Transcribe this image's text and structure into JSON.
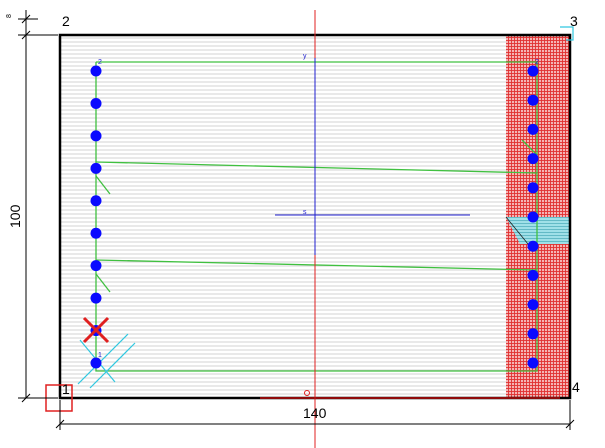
{
  "dimensions": {
    "width_label": "140",
    "height_label": "100",
    "top_label": "8"
  },
  "corners": {
    "c1": "1",
    "c2": "2",
    "c3": "3",
    "c4": "4"
  },
  "axes": {
    "vertical_label": "y",
    "center_label": "s"
  },
  "rebar": {
    "left_top_label": "2",
    "right_top_label": "2",
    "left_low_label": "1",
    "left_count": 10,
    "right_count": 11
  },
  "colors": {
    "section_outline": "#000000",
    "hatch": "#c8c8c8",
    "steel_zone": "#e8323c",
    "rebar": "#0a0aff",
    "stirrup": "#40c040",
    "axis_red": "#e02020",
    "axis_blue": "#2020d0",
    "cyan": "#30c8e0"
  }
}
